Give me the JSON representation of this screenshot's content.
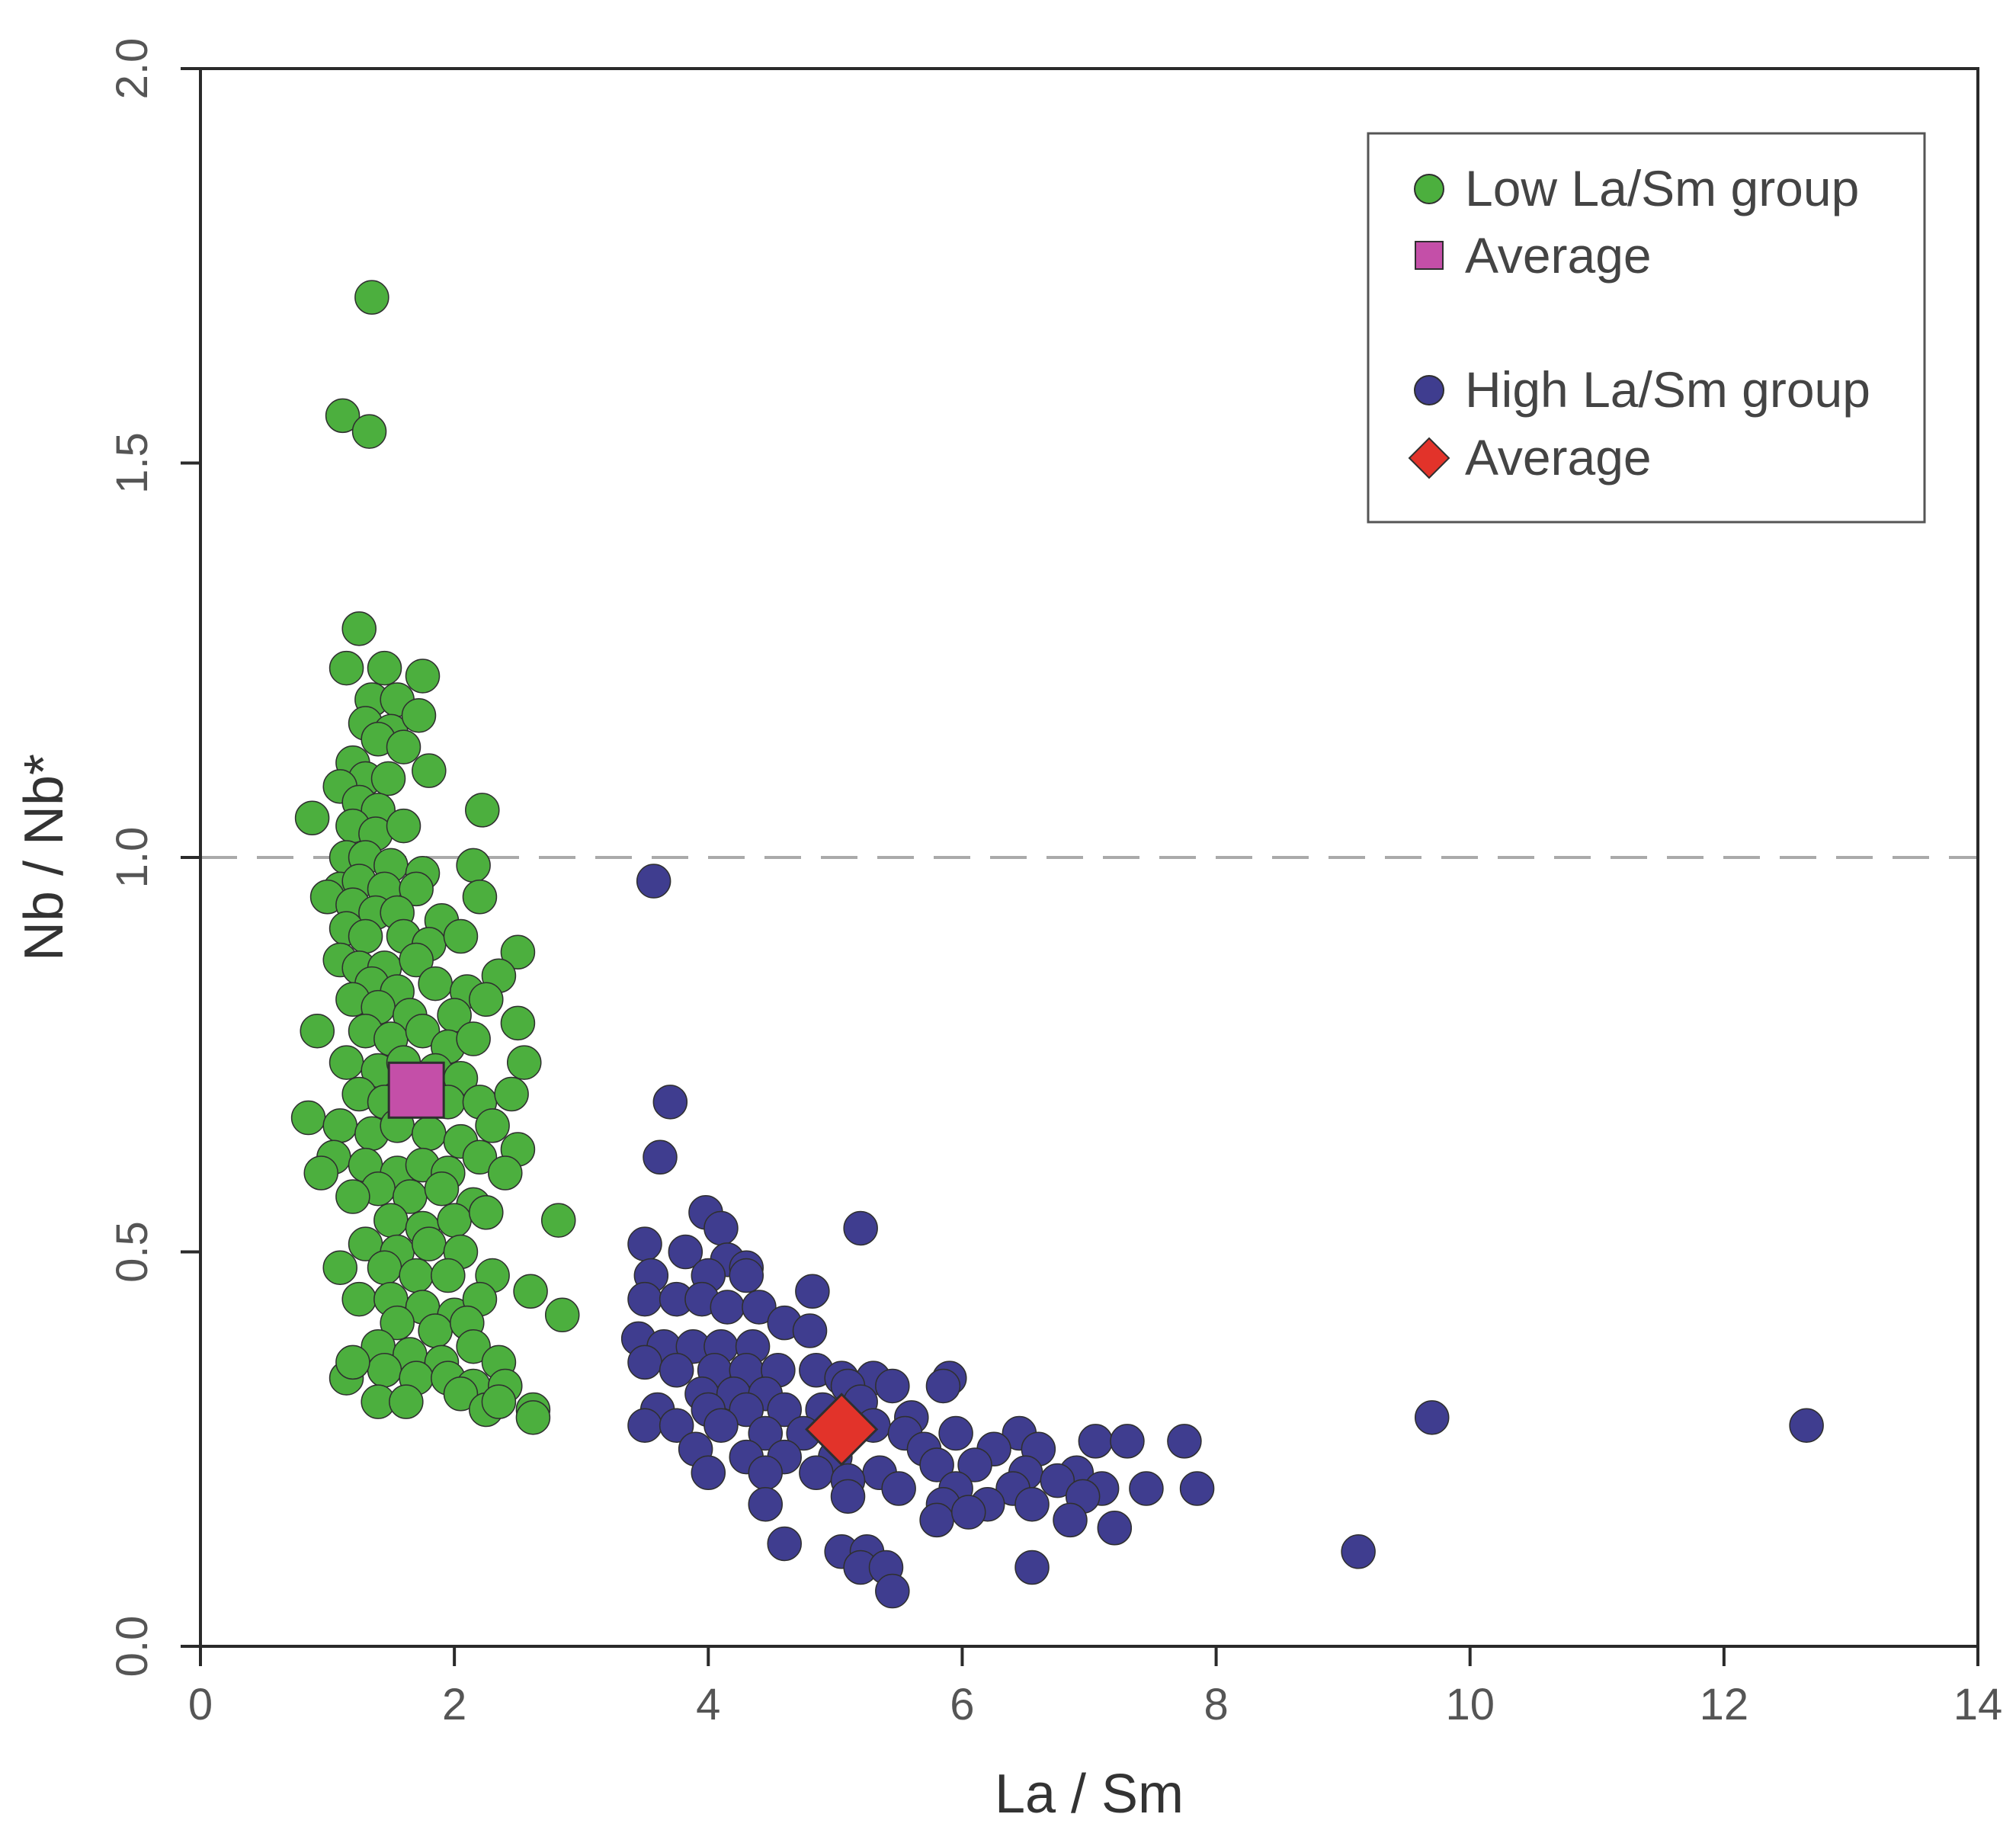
{
  "chart_data": {
    "type": "scatter",
    "title": "",
    "xlabel": "La / Sm",
    "ylabel": "Nb / Nb*",
    "xlim": [
      0,
      14
    ],
    "ylim": [
      0,
      2
    ],
    "xticks": [
      "0",
      "2",
      "4",
      "6",
      "8",
      "10",
      "12",
      "14"
    ],
    "yticks": [
      "0.0",
      "0.5",
      "1.0",
      "1.5",
      "2.0"
    ],
    "reference_line": {
      "y": 1.0,
      "style": "dashed",
      "color": "#aaaaaa"
    },
    "legend": {
      "position": "top-right",
      "entries": [
        {
          "label": "Low La/Sm group",
          "marker": "circle",
          "color": "#4caf3e"
        },
        {
          "label": "Average",
          "marker": "square",
          "color": "#c44fa8"
        },
        {
          "label": "High La/Sm group",
          "marker": "circle",
          "color": "#3f3d8f"
        },
        {
          "label": "Average",
          "marker": "diamond",
          "color": "#e2332a"
        }
      ]
    },
    "series": [
      {
        "name": "Low La/Sm group",
        "marker": "circle",
        "color": "#4caf3e",
        "points": [
          [
            1.35,
            1.71
          ],
          [
            1.12,
            1.56
          ],
          [
            1.33,
            1.54
          ],
          [
            1.25,
            1.29
          ],
          [
            1.15,
            1.24
          ],
          [
            1.45,
            1.24
          ],
          [
            1.75,
            1.23
          ],
          [
            1.35,
            1.2
          ],
          [
            1.55,
            1.2
          ],
          [
            1.3,
            1.17
          ],
          [
            1.5,
            1.16
          ],
          [
            1.72,
            1.18
          ],
          [
            1.4,
            1.15
          ],
          [
            1.6,
            1.14
          ],
          [
            1.2,
            1.12
          ],
          [
            1.3,
            1.1
          ],
          [
            1.48,
            1.1
          ],
          [
            1.8,
            1.11
          ],
          [
            1.1,
            1.09
          ],
          [
            1.25,
            1.07
          ],
          [
            1.4,
            1.06
          ],
          [
            0.88,
            1.05
          ],
          [
            1.2,
            1.04
          ],
          [
            1.38,
            1.03
          ],
          [
            1.6,
            1.04
          ],
          [
            2.22,
            1.06
          ],
          [
            1.15,
            1.0
          ],
          [
            1.3,
            1.0
          ],
          [
            1.5,
            0.99
          ],
          [
            1.75,
            0.98
          ],
          [
            2.15,
            0.99
          ],
          [
            1.1,
            0.96
          ],
          [
            1.25,
            0.97
          ],
          [
            1.45,
            0.96
          ],
          [
            1.7,
            0.96
          ],
          [
            1.0,
            0.95
          ],
          [
            1.2,
            0.94
          ],
          [
            1.38,
            0.93
          ],
          [
            1.55,
            0.93
          ],
          [
            2.2,
            0.95
          ],
          [
            1.9,
            0.92
          ],
          [
            1.15,
            0.91
          ],
          [
            1.3,
            0.9
          ],
          [
            1.6,
            0.9
          ],
          [
            1.8,
            0.89
          ],
          [
            2.05,
            0.9
          ],
          [
            1.1,
            0.87
          ],
          [
            1.25,
            0.86
          ],
          [
            1.45,
            0.86
          ],
          [
            1.7,
            0.87
          ],
          [
            2.5,
            0.88
          ],
          [
            1.35,
            0.84
          ],
          [
            1.55,
            0.83
          ],
          [
            1.85,
            0.84
          ],
          [
            2.1,
            0.83
          ],
          [
            2.35,
            0.85
          ],
          [
            1.2,
            0.82
          ],
          [
            1.4,
            0.81
          ],
          [
            1.65,
            0.8
          ],
          [
            2.0,
            0.8
          ],
          [
            2.25,
            0.82
          ],
          [
            2.5,
            0.79
          ],
          [
            0.92,
            0.78
          ],
          [
            1.3,
            0.78
          ],
          [
            1.5,
            0.77
          ],
          [
            1.75,
            0.78
          ],
          [
            1.95,
            0.76
          ],
          [
            2.15,
            0.77
          ],
          [
            1.15,
            0.74
          ],
          [
            1.4,
            0.73
          ],
          [
            1.6,
            0.74
          ],
          [
            1.85,
            0.73
          ],
          [
            2.05,
            0.72
          ],
          [
            2.55,
            0.74
          ],
          [
            1.25,
            0.7
          ],
          [
            1.45,
            0.69
          ],
          [
            1.7,
            0.7
          ],
          [
            1.95,
            0.69
          ],
          [
            2.2,
            0.69
          ],
          [
            2.45,
            0.7
          ],
          [
            0.85,
            0.67
          ],
          [
            1.1,
            0.66
          ],
          [
            1.35,
            0.65
          ],
          [
            1.55,
            0.66
          ],
          [
            1.8,
            0.65
          ],
          [
            2.05,
            0.64
          ],
          [
            2.3,
            0.66
          ],
          [
            1.05,
            0.62
          ],
          [
            1.3,
            0.61
          ],
          [
            1.55,
            0.6
          ],
          [
            1.75,
            0.61
          ],
          [
            1.95,
            0.6
          ],
          [
            2.2,
            0.62
          ],
          [
            2.5,
            0.63
          ],
          [
            0.95,
            0.6
          ],
          [
            1.4,
            0.58
          ],
          [
            1.65,
            0.57
          ],
          [
            1.9,
            0.58
          ],
          [
            2.15,
            0.56
          ],
          [
            2.4,
            0.6
          ],
          [
            1.2,
            0.57
          ],
          [
            1.5,
            0.54
          ],
          [
            1.75,
            0.53
          ],
          [
            2.0,
            0.54
          ],
          [
            2.25,
            0.55
          ],
          [
            2.82,
            0.54
          ],
          [
            1.3,
            0.51
          ],
          [
            1.55,
            0.5
          ],
          [
            1.8,
            0.51
          ],
          [
            2.05,
            0.5
          ],
          [
            1.1,
            0.48
          ],
          [
            1.45,
            0.48
          ],
          [
            1.7,
            0.47
          ],
          [
            1.95,
            0.47
          ],
          [
            2.3,
            0.47
          ],
          [
            2.6,
            0.45
          ],
          [
            1.25,
            0.44
          ],
          [
            1.5,
            0.44
          ],
          [
            1.75,
            0.43
          ],
          [
            2.0,
            0.42
          ],
          [
            2.2,
            0.44
          ],
          [
            1.55,
            0.41
          ],
          [
            1.85,
            0.4
          ],
          [
            2.1,
            0.41
          ],
          [
            2.85,
            0.42
          ],
          [
            1.4,
            0.38
          ],
          [
            1.65,
            0.37
          ],
          [
            1.9,
            0.36
          ],
          [
            2.15,
            0.38
          ],
          [
            2.35,
            0.36
          ],
          [
            1.15,
            0.34
          ],
          [
            1.45,
            0.35
          ],
          [
            1.7,
            0.34
          ],
          [
            1.95,
            0.34
          ],
          [
            2.15,
            0.33
          ],
          [
            2.4,
            0.33
          ],
          [
            1.4,
            0.31
          ],
          [
            1.62,
            0.31
          ],
          [
            2.05,
            0.32
          ],
          [
            2.25,
            0.3
          ],
          [
            2.35,
            0.31
          ],
          [
            2.62,
            0.3
          ],
          [
            2.62,
            0.29
          ],
          [
            1.2,
            0.36
          ]
        ]
      },
      {
        "name": "Low La/Sm group average",
        "marker": "square",
        "color": "#c44fa8",
        "points": [
          [
            1.7,
            0.705
          ]
        ]
      },
      {
        "name": "High La/Sm group",
        "marker": "circle",
        "color": "#3f3d8f",
        "points": [
          [
            3.57,
            0.97
          ],
          [
            3.7,
            0.69
          ],
          [
            3.62,
            0.62
          ],
          [
            3.98,
            0.55
          ],
          [
            4.1,
            0.53
          ],
          [
            5.2,
            0.53
          ],
          [
            3.5,
            0.51
          ],
          [
            3.82,
            0.5
          ],
          [
            4.15,
            0.49
          ],
          [
            4.3,
            0.48
          ],
          [
            3.55,
            0.47
          ],
          [
            4.0,
            0.47
          ],
          [
            4.3,
            0.47
          ],
          [
            4.82,
            0.45
          ],
          [
            3.5,
            0.44
          ],
          [
            3.75,
            0.44
          ],
          [
            3.95,
            0.44
          ],
          [
            4.15,
            0.43
          ],
          [
            4.4,
            0.43
          ],
          [
            4.6,
            0.41
          ],
          [
            4.8,
            0.4
          ],
          [
            3.45,
            0.39
          ],
          [
            3.65,
            0.38
          ],
          [
            3.88,
            0.38
          ],
          [
            4.1,
            0.38
          ],
          [
            4.35,
            0.38
          ],
          [
            3.5,
            0.36
          ],
          [
            3.75,
            0.35
          ],
          [
            4.05,
            0.35
          ],
          [
            4.3,
            0.35
          ],
          [
            4.55,
            0.35
          ],
          [
            4.85,
            0.35
          ],
          [
            5.05,
            0.34
          ],
          [
            5.3,
            0.34
          ],
          [
            5.9,
            0.34
          ],
          [
            3.95,
            0.32
          ],
          [
            4.2,
            0.32
          ],
          [
            4.45,
            0.32
          ],
          [
            5.1,
            0.33
          ],
          [
            5.45,
            0.33
          ],
          [
            5.85,
            0.33
          ],
          [
            3.6,
            0.3
          ],
          [
            4.0,
            0.3
          ],
          [
            4.3,
            0.3
          ],
          [
            4.6,
            0.3
          ],
          [
            4.9,
            0.3
          ],
          [
            5.2,
            0.31
          ],
          [
            5.6,
            0.29
          ],
          [
            3.5,
            0.28
          ],
          [
            3.75,
            0.28
          ],
          [
            4.1,
            0.28
          ],
          [
            4.45,
            0.27
          ],
          [
            4.75,
            0.27
          ],
          [
            5.3,
            0.28
          ],
          [
            5.55,
            0.27
          ],
          [
            5.95,
            0.27
          ],
          [
            6.45,
            0.27
          ],
          [
            3.9,
            0.25
          ],
          [
            4.3,
            0.24
          ],
          [
            4.6,
            0.24
          ],
          [
            5.0,
            0.24
          ],
          [
            5.7,
            0.25
          ],
          [
            6.25,
            0.25
          ],
          [
            6.6,
            0.25
          ],
          [
            7.05,
            0.26
          ],
          [
            7.3,
            0.26
          ],
          [
            7.75,
            0.26
          ],
          [
            4.0,
            0.22
          ],
          [
            4.45,
            0.22
          ],
          [
            4.85,
            0.22
          ],
          [
            5.35,
            0.22
          ],
          [
            5.8,
            0.23
          ],
          [
            6.1,
            0.23
          ],
          [
            6.5,
            0.22
          ],
          [
            6.9,
            0.22
          ],
          [
            5.1,
            0.21
          ],
          [
            5.5,
            0.2
          ],
          [
            5.95,
            0.2
          ],
          [
            6.4,
            0.2
          ],
          [
            6.75,
            0.21
          ],
          [
            7.1,
            0.2
          ],
          [
            7.45,
            0.2
          ],
          [
            7.85,
            0.2
          ],
          [
            4.45,
            0.18
          ],
          [
            5.1,
            0.19
          ],
          [
            5.85,
            0.18
          ],
          [
            6.2,
            0.18
          ],
          [
            6.55,
            0.18
          ],
          [
            6.95,
            0.19
          ],
          [
            5.8,
            0.16
          ],
          [
            6.05,
            0.17
          ],
          [
            6.85,
            0.16
          ],
          [
            7.2,
            0.15
          ],
          [
            4.6,
            0.13
          ],
          [
            5.05,
            0.12
          ],
          [
            5.25,
            0.12
          ],
          [
            5.2,
            0.1
          ],
          [
            5.4,
            0.1
          ],
          [
            6.55,
            0.1
          ],
          [
            5.45,
            0.07
          ],
          [
            9.7,
            0.29
          ],
          [
            12.65,
            0.28
          ],
          [
            9.12,
            0.12
          ]
        ]
      },
      {
        "name": "High La/Sm group average",
        "marker": "diamond",
        "color": "#e2332a",
        "points": [
          [
            5.05,
            0.275
          ]
        ]
      }
    ]
  }
}
